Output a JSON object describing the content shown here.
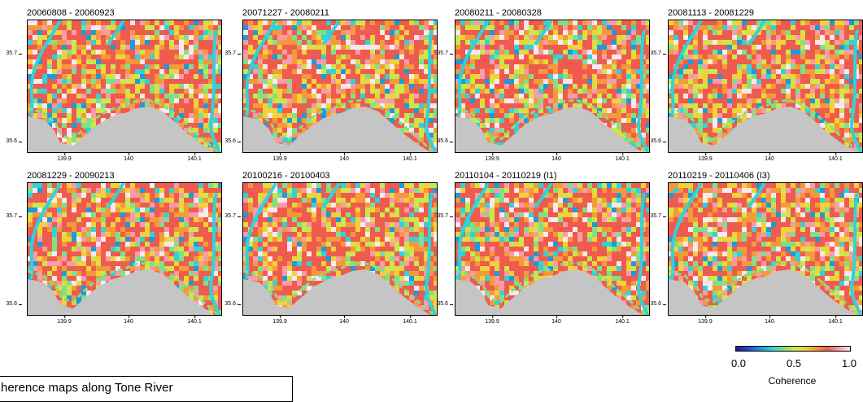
{
  "panels": [
    {
      "title": "20060808 - 20060923"
    },
    {
      "title": "20071227 - 20080211"
    },
    {
      "title": "20080211 - 20080328"
    },
    {
      "title": "20081113 - 20081229"
    },
    {
      "title": "20081229 - 20090213"
    },
    {
      "title": "20100216 - 20100403"
    },
    {
      "title": "20110104 - 20110219 (I1)"
    },
    {
      "title": "20110219 - 20110406 (I3)"
    }
  ],
  "y_ticks": [
    "35.7",
    "35.6"
  ],
  "x_ticks": [
    "139.9",
    "140",
    "140.1"
  ],
  "colorbar": {
    "ticks": [
      "0.0",
      "0.5",
      "1.0"
    ],
    "label": "Coherence",
    "colors": [
      "#1c1a8a",
      "#2b3fd0",
      "#1e9ad8",
      "#33d1d8",
      "#7fe08a",
      "#c9e84c",
      "#f2d23a",
      "#f59a3a",
      "#ef5b4e",
      "#f79ca8",
      "#fbe8ee"
    ]
  },
  "caption": {
    "text": "herence maps along Tone River"
  },
  "colors": {
    "water_bay": "#c5c5c5",
    "river": "#33d1d8",
    "land_dominant": "#ef5b4e"
  }
}
